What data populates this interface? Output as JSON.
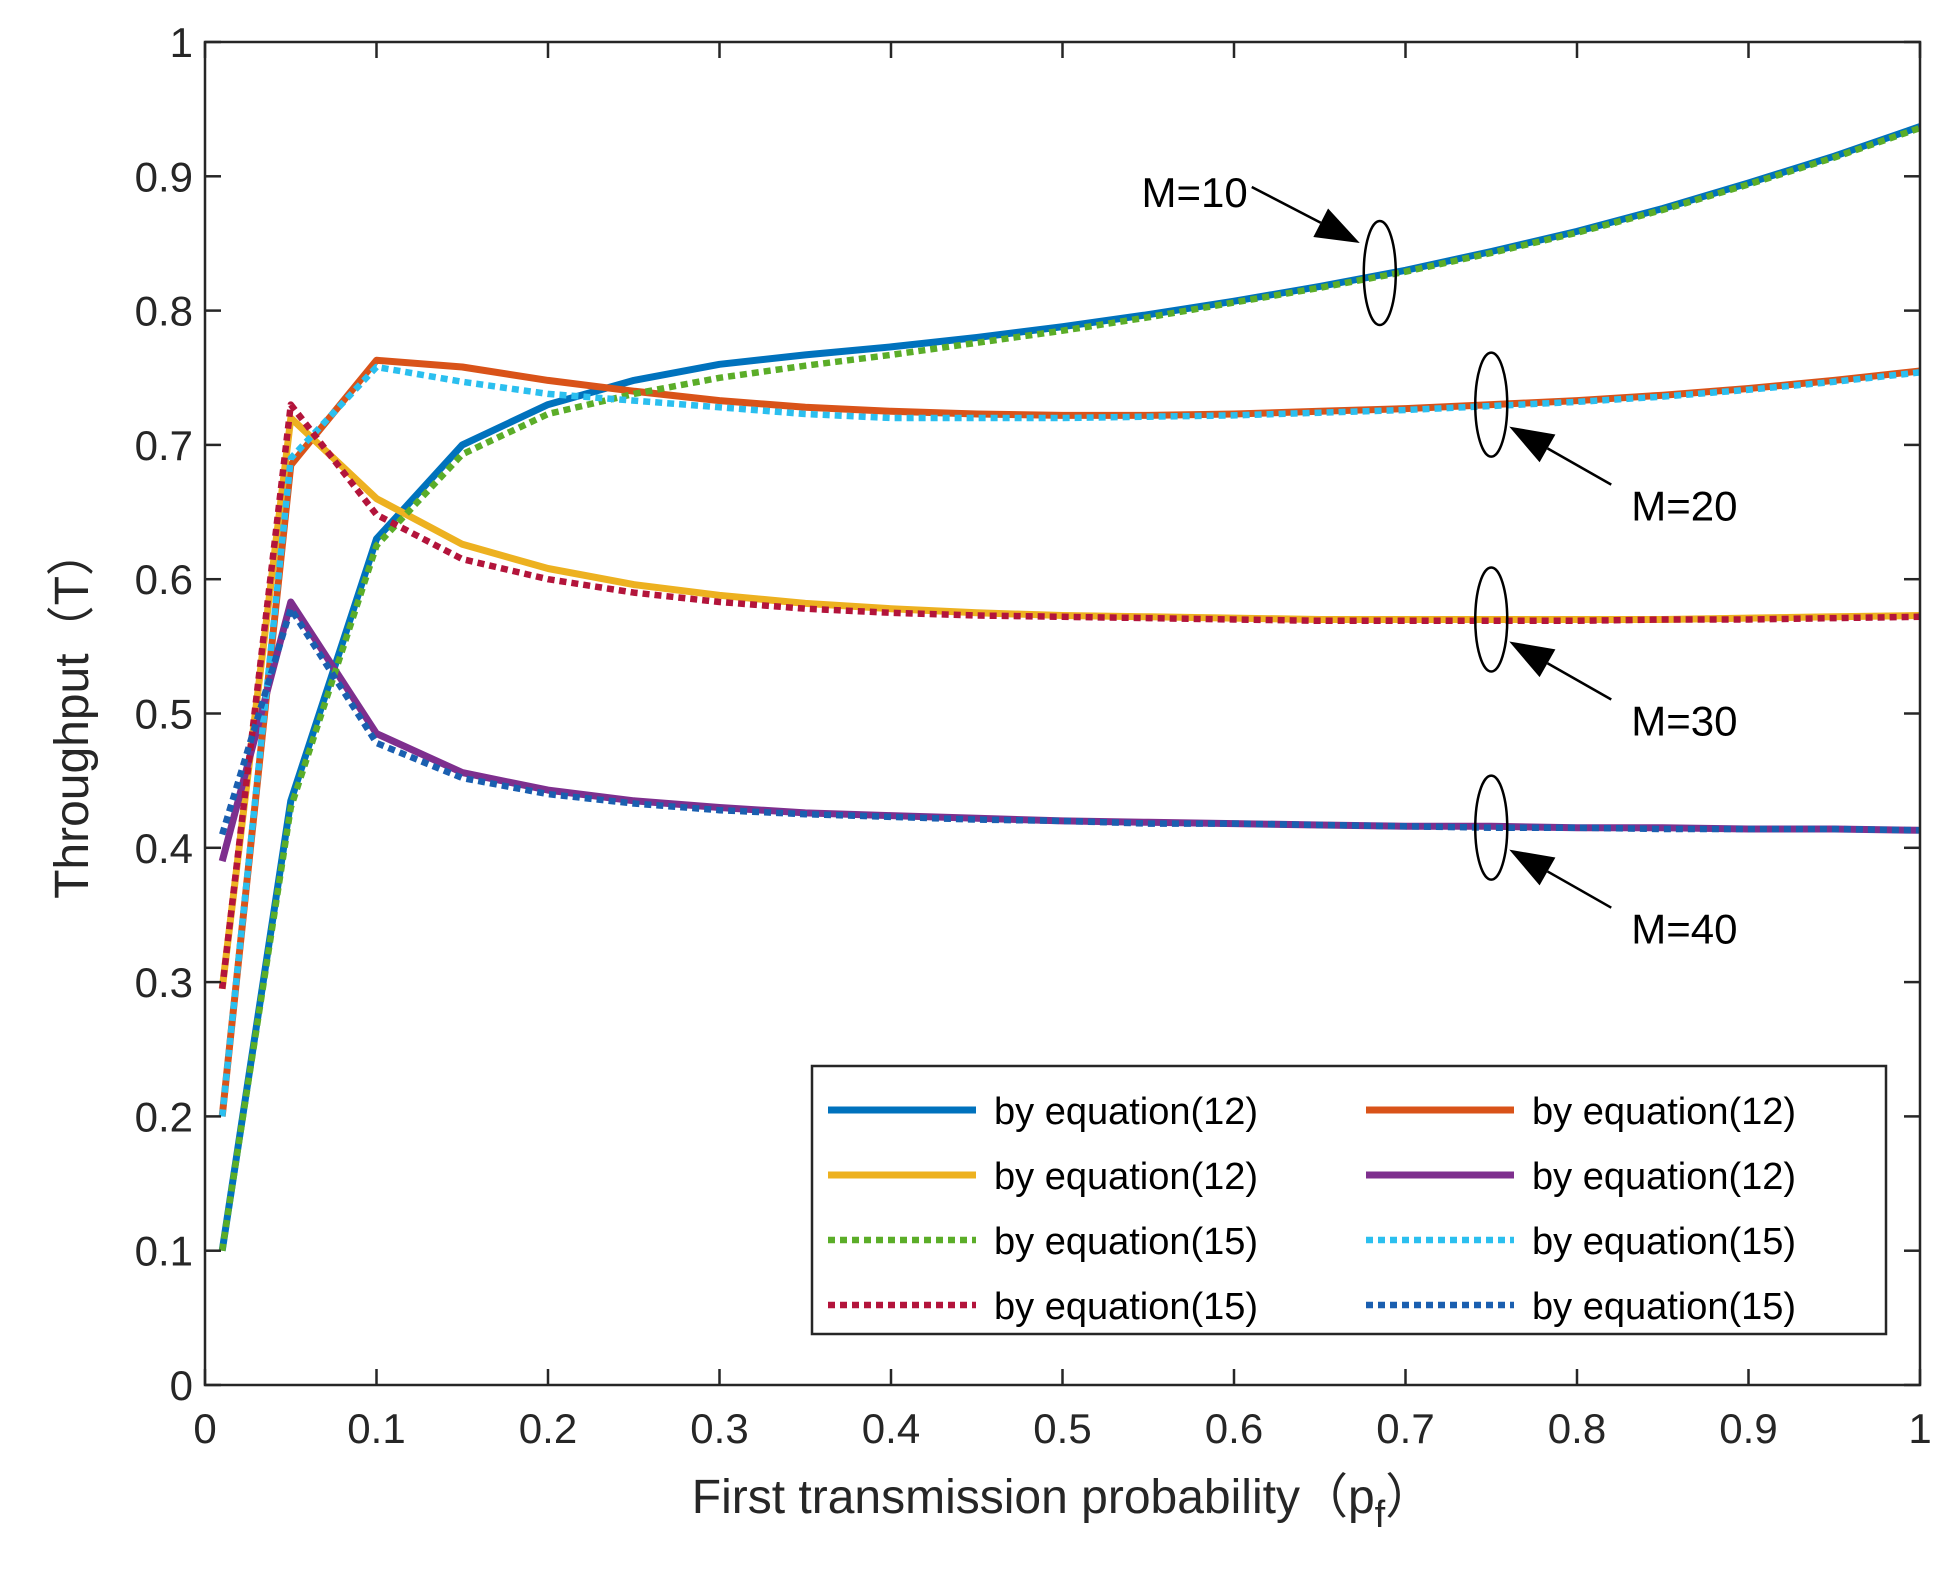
{
  "chart_data": {
    "type": "line",
    "xlabel": "First transmission probability（p",
    "xlabel_sub": "f",
    "xlabel_close": "）",
    "ylabel": "Throughput（T）",
    "xlim": [
      0,
      1
    ],
    "ylim": [
      0,
      1
    ],
    "xticks": [
      "0",
      "0.1",
      "0.2",
      "0.3",
      "0.4",
      "0.5",
      "0.6",
      "0.7",
      "0.8",
      "0.9",
      "1"
    ],
    "yticks": [
      "0",
      "0.1",
      "0.2",
      "0.3",
      "0.4",
      "0.5",
      "0.6",
      "0.7",
      "0.8",
      "0.9",
      "1"
    ],
    "grid": false,
    "legend_position": "lower-right",
    "x": [
      0.01,
      0.05,
      0.1,
      0.15,
      0.2,
      0.25,
      0.3,
      0.35,
      0.4,
      0.45,
      0.5,
      0.55,
      0.6,
      0.65,
      0.7,
      0.75,
      0.8,
      0.85,
      0.9,
      0.95,
      1.0
    ],
    "series": [
      {
        "name": "by equation(12)",
        "color": "#0072BD",
        "dash": "solid",
        "values": [
          0.1,
          0.435,
          0.63,
          0.7,
          0.73,
          0.748,
          0.76,
          0.767,
          0.773,
          0.78,
          0.788,
          0.797,
          0.807,
          0.818,
          0.83,
          0.844,
          0.859,
          0.876,
          0.895,
          0.915,
          0.937
        ]
      },
      {
        "name": "by equation(12)",
        "color": "#D95319",
        "dash": "solid",
        "values": [
          0.2,
          0.685,
          0.763,
          0.758,
          0.748,
          0.74,
          0.733,
          0.728,
          0.725,
          0.723,
          0.722,
          0.722,
          0.723,
          0.725,
          0.727,
          0.73,
          0.733,
          0.737,
          0.742,
          0.748,
          0.755
        ]
      },
      {
        "name": "by equation(12)",
        "color": "#EDB120",
        "dash": "solid",
        "values": [
          0.295,
          0.72,
          0.66,
          0.626,
          0.608,
          0.596,
          0.588,
          0.582,
          0.578,
          0.575,
          0.573,
          0.572,
          0.571,
          0.57,
          0.57,
          0.57,
          0.57,
          0.57,
          0.571,
          0.572,
          0.573
        ]
      },
      {
        "name": "by equation(12)",
        "color": "#7E2F8E",
        "dash": "solid",
        "values": [
          0.39,
          0.583,
          0.485,
          0.456,
          0.443,
          0.435,
          0.43,
          0.426,
          0.424,
          0.422,
          0.42,
          0.419,
          0.418,
          0.417,
          0.416,
          0.416,
          0.415,
          0.415,
          0.414,
          0.414,
          0.413
        ]
      },
      {
        "name": "by equation(15)",
        "color": "#5BAD28",
        "dash": "dotted",
        "values": [
          0.1,
          0.43,
          0.625,
          0.693,
          0.723,
          0.738,
          0.75,
          0.759,
          0.767,
          0.776,
          0.785,
          0.795,
          0.806,
          0.817,
          0.829,
          0.843,
          0.858,
          0.875,
          0.894,
          0.914,
          0.936
        ]
      },
      {
        "name": "by equation(15)",
        "color": "#2BBFEF",
        "dash": "dotted",
        "values": [
          0.2,
          0.69,
          0.758,
          0.747,
          0.738,
          0.733,
          0.728,
          0.723,
          0.72,
          0.72,
          0.72,
          0.721,
          0.722,
          0.724,
          0.726,
          0.729,
          0.732,
          0.736,
          0.741,
          0.747,
          0.754
        ]
      },
      {
        "name": "by equation(15)",
        "color": "#B3143B",
        "dash": "dotted",
        "values": [
          0.295,
          0.73,
          0.648,
          0.615,
          0.6,
          0.59,
          0.583,
          0.578,
          0.575,
          0.573,
          0.572,
          0.571,
          0.57,
          0.569,
          0.569,
          0.569,
          0.569,
          0.57,
          0.57,
          0.571,
          0.572
        ]
      },
      {
        "name": "by equation(15)",
        "color": "#1A5FB0",
        "dash": "dotted",
        "values": [
          0.41,
          0.578,
          0.478,
          0.452,
          0.44,
          0.433,
          0.428,
          0.425,
          0.423,
          0.421,
          0.42,
          0.418,
          0.418,
          0.417,
          0.416,
          0.415,
          0.415,
          0.414,
          0.414,
          0.414,
          0.413
        ]
      }
    ],
    "annotations": [
      {
        "text": "M=10",
        "x": 0.685,
        "y": 0.828
      },
      {
        "text": "M=20",
        "x": 0.75,
        "y": 0.73
      },
      {
        "text": "M=30",
        "x": 0.75,
        "y": 0.57
      },
      {
        "text": "M=40",
        "x": 0.75,
        "y": 0.415
      }
    ]
  }
}
